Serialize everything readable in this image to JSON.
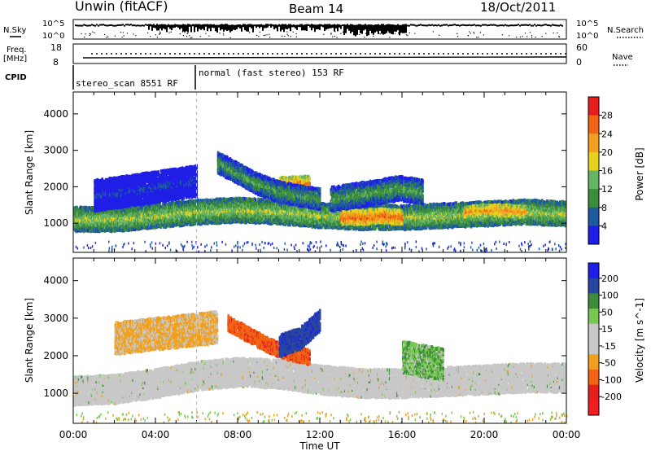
{
  "header": {
    "station": "Unwin (fitACF)",
    "beam": "Beam 14",
    "date": "18/Oct/2011"
  },
  "strip": {
    "nsky_label": "N.Sky",
    "nsearch_label": "N.Search",
    "freq_label_1": "Freq.",
    "freq_label_2": "[MHz]",
    "nave_label": "Nave",
    "cpid_label": "CPID",
    "noise_ticks_left": [
      "10^5",
      "10^0"
    ],
    "noise_ticks_right": [
      "10^5",
      "10^0"
    ],
    "freq_ticks": [
      "18",
      "8"
    ],
    "nave_ticks": [
      "60",
      "0"
    ],
    "cpid_segments": [
      {
        "label": "stereo_scan 8551 RF",
        "start": 0,
        "end": 6.0
      },
      {
        "label": "normal (fast stereo) 153 RF",
        "start": 6.0,
        "end": 24
      }
    ]
  },
  "colors": {
    "power_scale": [
      "#1e1ee6",
      "#1e5aa0",
      "#3c8c3c",
      "#64b464",
      "#e6d21e",
      "#f0a01e",
      "#f06414",
      "#e61e1e"
    ],
    "velocity_scale": [
      "#1e1ee6",
      "#2846a0",
      "#3c8c3c",
      "#78c850",
      "#c8c8c8",
      "#c8c8c8",
      "#f0a01e",
      "#f06414",
      "#e61e1e",
      "#f01e1e"
    ]
  },
  "chart_data": [
    {
      "type": "heatmap",
      "panel": "power",
      "ylabel": "Slant Range [km]",
      "xlabel": "Time UT",
      "x_ticks": [
        "00:00",
        "04:00",
        "08:00",
        "12:00",
        "16:00",
        "20:00",
        "00:00"
      ],
      "y_ticks": [
        1000,
        2000,
        3000,
        4000
      ],
      "ylim": [
        200,
        4600
      ],
      "xlim": [
        0,
        24
      ],
      "colorbar_label": "Power [dB]",
      "colorbar_ticks": [
        4,
        8,
        12,
        16,
        20,
        24,
        28
      ],
      "bands": [
        {
          "t0": 0,
          "t1": 24,
          "r_center": [
            1150,
            1150,
            1250,
            1350,
            1400,
            1350,
            1250,
            1200,
            1200,
            1250,
            1300,
            1350,
            1300
          ],
          "width": 300,
          "level": 18
        },
        {
          "t0": 13,
          "t1": 16,
          "r_center": [
            1200,
            1200,
            1250,
            1200
          ],
          "width": 200,
          "level": 28
        },
        {
          "t0": 19,
          "t1": 22,
          "r_center": [
            1350,
            1400,
            1400,
            1350
          ],
          "width": 150,
          "level": 26
        },
        {
          "t0": 10,
          "t1": 11.5,
          "r_center": [
            2100,
            2150
          ],
          "width": 200,
          "level": 26
        },
        {
          "t0": 7,
          "t1": 12,
          "r_center": [
            2700,
            2400,
            2100,
            1900,
            1800,
            1700
          ],
          "width": 250,
          "level": 14
        },
        {
          "t0": 12.5,
          "t1": 17,
          "r_center": [
            1700,
            1800,
            1900,
            2000,
            1900
          ],
          "width": 300,
          "level": 14
        },
        {
          "t0": 1,
          "t1": 6,
          "r_center": [
            1800,
            1900,
            2000,
            2100,
            2200
          ],
          "width": 400,
          "level": 6
        }
      ]
    },
    {
      "type": "heatmap",
      "panel": "velocity",
      "ylabel": "Slant Range [km]",
      "xlabel": "Time UT",
      "x_ticks": [
        "00:00",
        "04:00",
        "08:00",
        "12:00",
        "16:00",
        "20:00",
        "00:00"
      ],
      "y_ticks": [
        1000,
        2000,
        3000,
        4000
      ],
      "ylim": [
        200,
        4600
      ],
      "xlim": [
        0,
        24
      ],
      "colorbar_label": "Velocity [m s^-1]",
      "colorbar_ticks": [
        200,
        100,
        50,
        15,
        -15,
        -50,
        -100,
        -200
      ],
      "bands": [
        {
          "t0": 0,
          "t1": 24,
          "r_center": [
            1100,
            1150,
            1300,
            1500,
            1600,
            1550,
            1400,
            1300,
            1300,
            1350,
            1400,
            1450,
            1450
          ],
          "width": 350,
          "level": 0
        },
        {
          "t0": 7.5,
          "t1": 11.5,
          "r_center": [
            2900,
            2600,
            2300,
            2100,
            2000
          ],
          "width": 200,
          "level": -180
        },
        {
          "t0": 10,
          "t1": 12,
          "r_center": [
            2300,
            2500,
            3000
          ],
          "width": 250,
          "level": 180
        },
        {
          "t0": 16,
          "t1": 18,
          "r_center": [
            2000,
            1900,
            1800
          ],
          "width": 400,
          "level": 40
        },
        {
          "t0": 2,
          "t1": 7,
          "r_center": [
            2500,
            2600,
            2700,
            2800
          ],
          "width": 400,
          "level": -60
        }
      ]
    }
  ]
}
